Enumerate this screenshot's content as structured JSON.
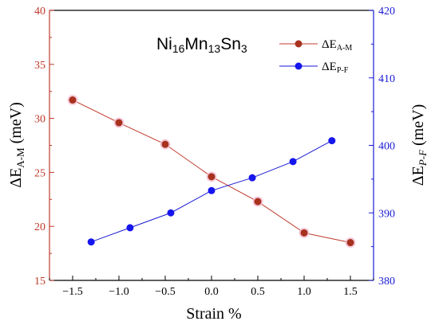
{
  "chart_data": {
    "type": "line",
    "title_parts": {
      "t1": "Ni",
      "s1": "16",
      "t2": "Mn",
      "s2": "13",
      "t3": "Sn",
      "s3": "3"
    },
    "xlabel": "Strain %",
    "ylabel_left": {
      "delta": "ΔE",
      "sub": "A-M",
      "unit": " (meV)"
    },
    "ylabel_right": {
      "delta": "ΔE",
      "sub": "P-F",
      "unit": " (meV)"
    },
    "xlim": [
      -1.75,
      1.75
    ],
    "ylim_left": [
      15,
      40
    ],
    "ylim_right": [
      380,
      420
    ],
    "x_ticks": [
      "-1.5",
      "-1.0",
      "-0.5",
      "0.0",
      "0.5",
      "1.0",
      "1.5"
    ],
    "x_tick_values": [
      -1.5,
      -1.0,
      -0.5,
      0.0,
      0.5,
      1.0,
      1.5
    ],
    "y_ticks_left": [
      "15",
      "20",
      "25",
      "30",
      "35",
      "40"
    ],
    "y_tick_values_left": [
      15,
      20,
      25,
      30,
      35,
      40
    ],
    "y_ticks_right": [
      "380",
      "390",
      "400",
      "410",
      "420"
    ],
    "y_tick_values_right": [
      380,
      390,
      400,
      410,
      420
    ],
    "legend_placement": "top-right",
    "grid": false,
    "colors": {
      "left_axis": "#c0392b",
      "right_axis": "#1a1ad6",
      "series_a": "#a8321e",
      "series_b": "#1515ee"
    },
    "series": [
      {
        "name": {
          "delta": "ΔE",
          "sub": "A-M"
        },
        "axis": "left",
        "x": [
          -1.5,
          -1.0,
          -0.5,
          0.0,
          0.5,
          1.0,
          1.5
        ],
        "y": [
          31.7,
          29.6,
          27.6,
          24.6,
          22.3,
          19.4,
          18.5
        ]
      },
      {
        "name": {
          "delta": "ΔE",
          "sub": "P-F"
        },
        "axis": "right",
        "x": [
          -1.3,
          -0.88,
          -0.44,
          0.0,
          0.44,
          0.88,
          1.3
        ],
        "y": [
          385.7,
          387.8,
          390.0,
          393.3,
          395.2,
          397.6,
          400.7
        ]
      }
    ]
  }
}
